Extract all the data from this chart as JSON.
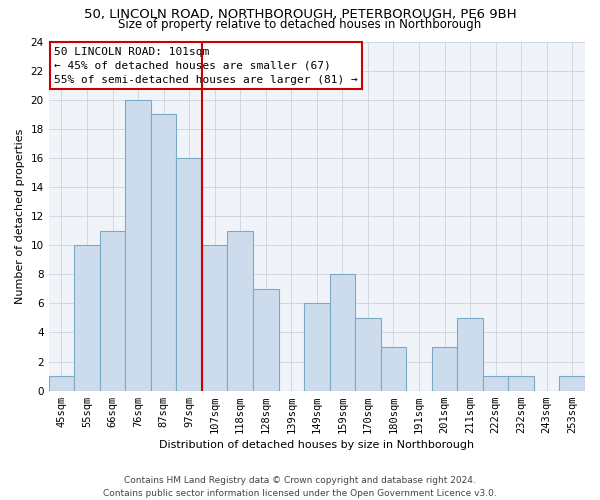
{
  "title": "50, LINCOLN ROAD, NORTHBOROUGH, PETERBOROUGH, PE6 9BH",
  "subtitle": "Size of property relative to detached houses in Northborough",
  "xlabel": "Distribution of detached houses by size in Northborough",
  "ylabel": "Number of detached properties",
  "categories": [
    "45sqm",
    "55sqm",
    "66sqm",
    "76sqm",
    "87sqm",
    "97sqm",
    "107sqm",
    "118sqm",
    "128sqm",
    "139sqm",
    "149sqm",
    "159sqm",
    "170sqm",
    "180sqm",
    "191sqm",
    "201sqm",
    "211sqm",
    "222sqm",
    "232sqm",
    "243sqm",
    "253sqm"
  ],
  "values": [
    1,
    10,
    11,
    20,
    19,
    16,
    10,
    11,
    7,
    0,
    6,
    8,
    5,
    3,
    0,
    3,
    5,
    1,
    1,
    0,
    1
  ],
  "bar_color": "#ccdcec",
  "bar_edge_color": "#7aaac8",
  "ylim": [
    0,
    24
  ],
  "yticks": [
    0,
    2,
    4,
    6,
    8,
    10,
    12,
    14,
    16,
    18,
    20,
    22,
    24
  ],
  "vline_x": 6,
  "vline_color": "#cc0000",
  "annotation_title": "50 LINCOLN ROAD: 101sqm",
  "annotation_line1": "← 45% of detached houses are smaller (67)",
  "annotation_line2": "55% of semi-detached houses are larger (81) →",
  "footer1": "Contains HM Land Registry data © Crown copyright and database right 2024.",
  "footer2": "Contains public sector information licensed under the Open Government Licence v3.0.",
  "title_fontsize": 9.5,
  "subtitle_fontsize": 8.5,
  "axis_label_fontsize": 8,
  "tick_fontsize": 7.5,
  "annotation_fontsize": 8,
  "footer_fontsize": 6.5,
  "ylabel_fontsize": 8
}
